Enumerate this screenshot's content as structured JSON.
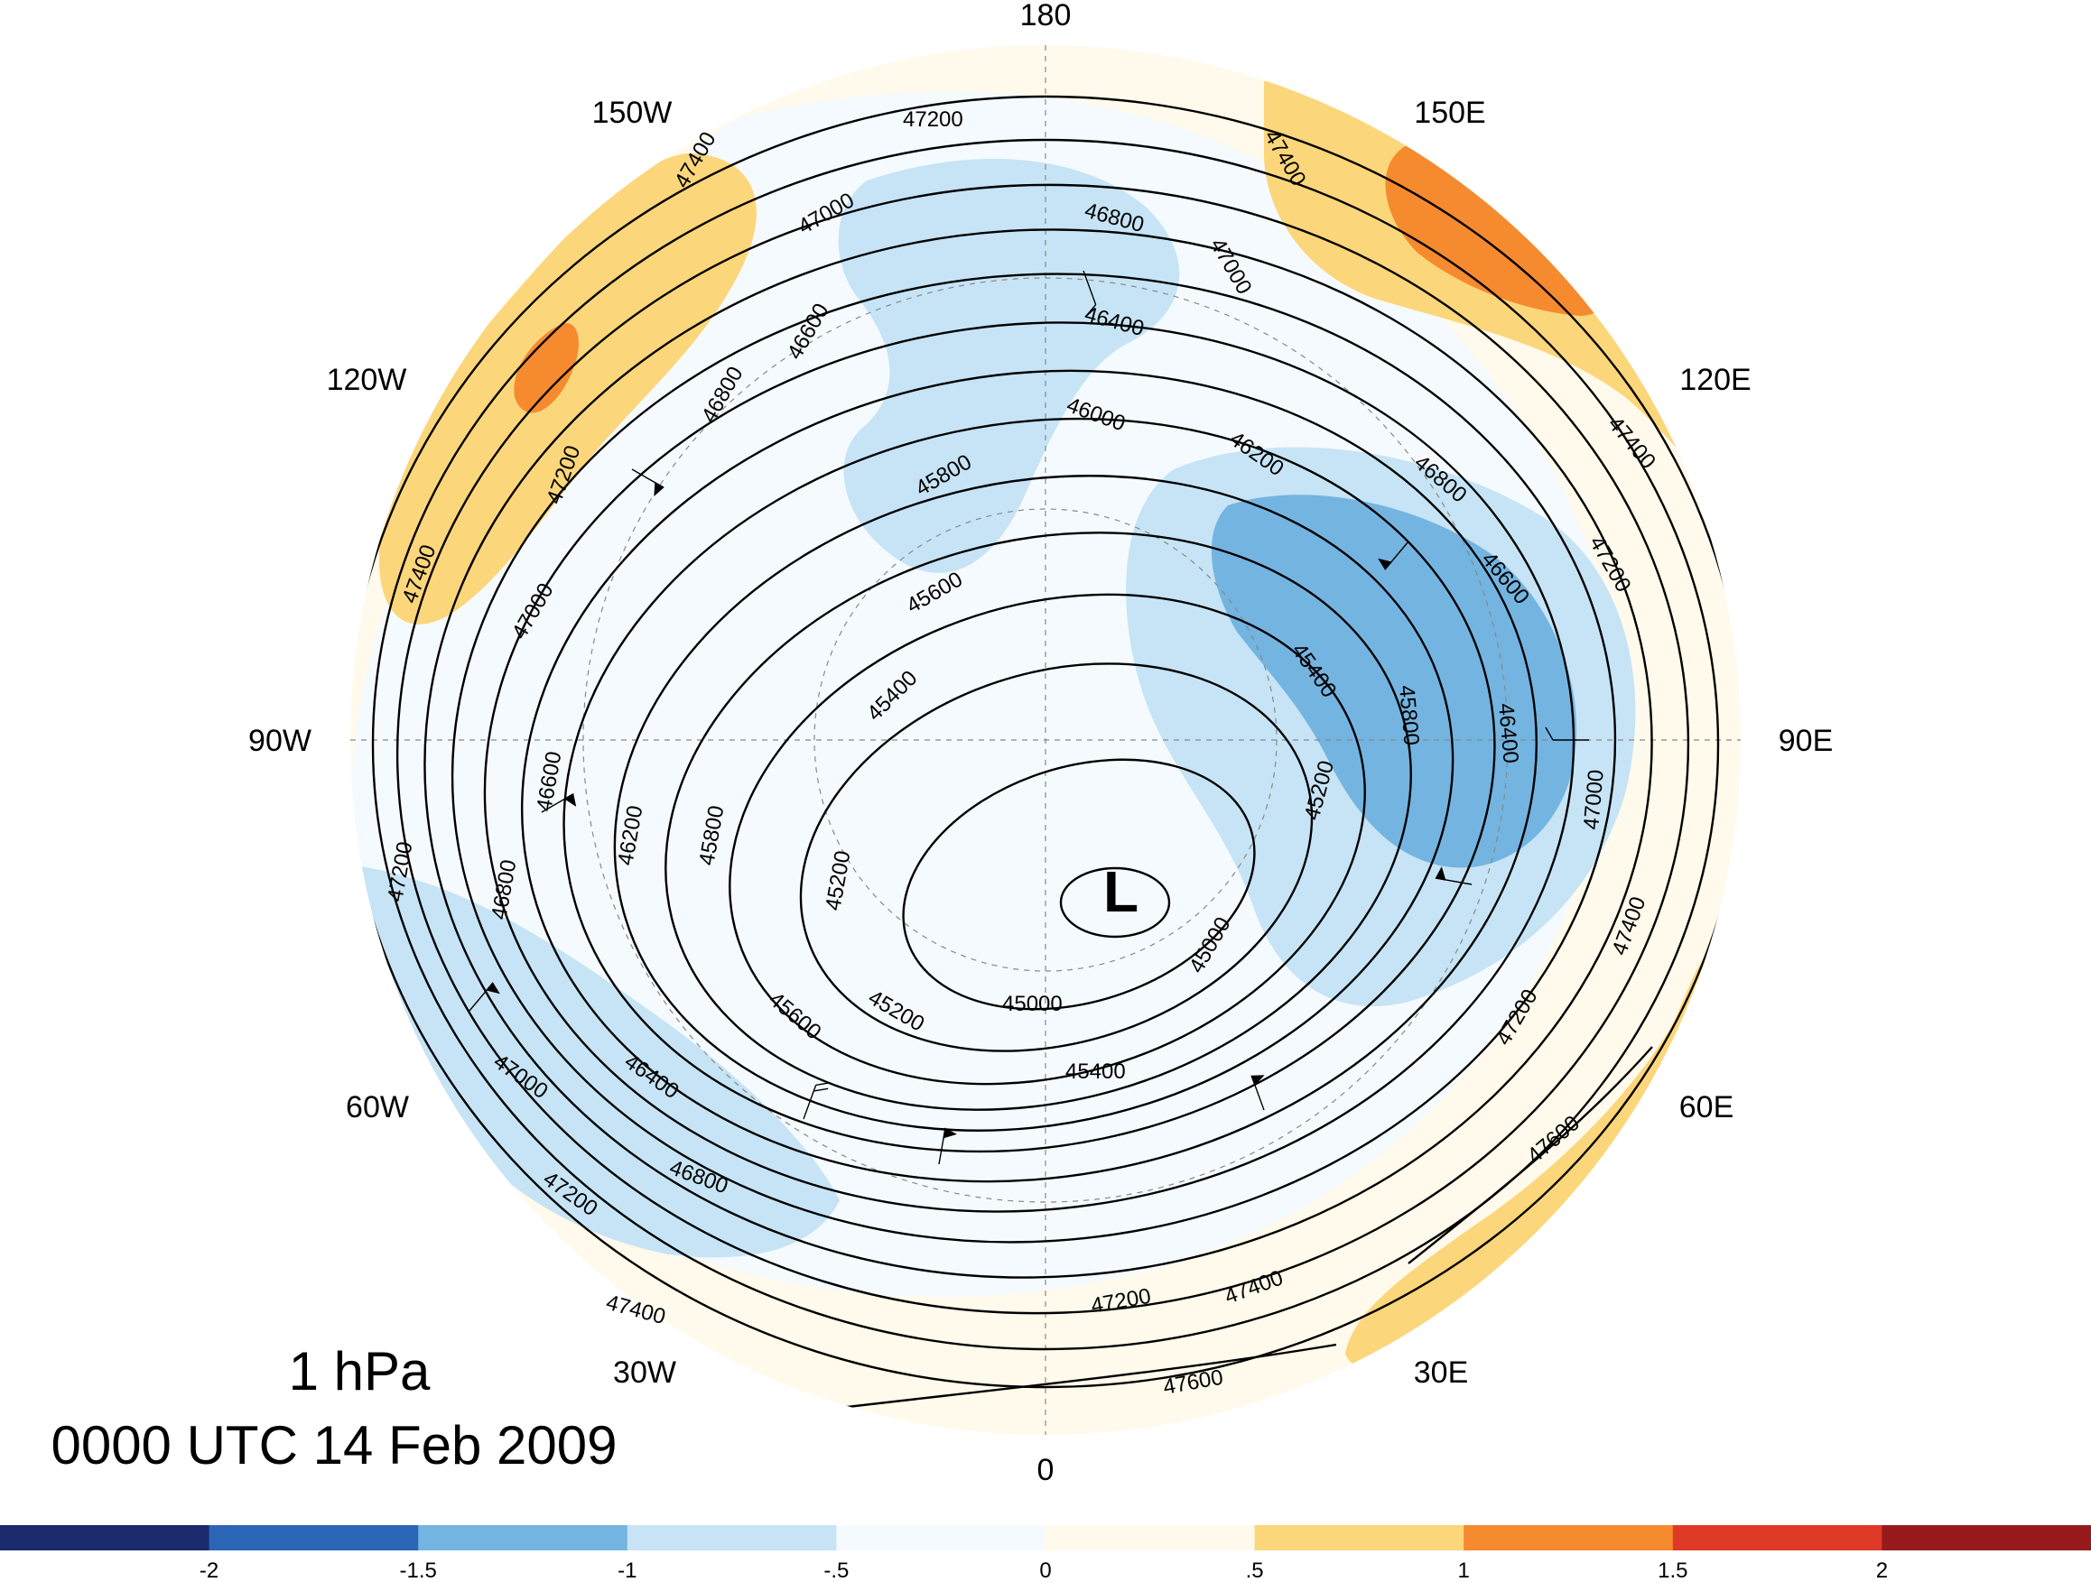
{
  "map": {
    "projection": "north-polar-stereographic",
    "level": "1 hPa",
    "valid_time": "0000 UTC 14 Feb 2009",
    "low_marker": "L",
    "longitude_labels": [
      "180",
      "150E",
      "120E",
      "90E",
      "60E",
      "30E",
      "0",
      "30W",
      "60W",
      "90W",
      "120W",
      "150W"
    ],
    "contour_labels": [
      "47200",
      "47400",
      "47000",
      "46800",
      "46600",
      "46400",
      "46000",
      "46200",
      "45800",
      "45600",
      "45400",
      "45200",
      "45000",
      "47600"
    ],
    "shading_colors": {
      "le_-2": "#1a2a6c",
      "-2_-1.5": "#2b65b5",
      "-1.5_-1": "#74b4e0",
      "-1_-0.5": "#c6e4f5",
      "-0.5_0": "#f5fafe",
      "0_0.5": "#fffaeb",
      "0.5_1": "#fcd67a",
      "1_1.5": "#f68a2e",
      "1.5_2": "#df3a27",
      "ge_2": "#981a1d"
    }
  },
  "colorbar": {
    "ticks": [
      "-2",
      "-1.5",
      "-1",
      "-.5",
      "0",
      ".5",
      "1",
      "1.5",
      "2"
    ],
    "colors": [
      "#1a2a6c",
      "#2b65b5",
      "#74b4e0",
      "#c6e4f5",
      "#f5fafe",
      "#fffaeb",
      "#fcd67a",
      "#f68a2e",
      "#df3a27",
      "#981a1d"
    ]
  }
}
